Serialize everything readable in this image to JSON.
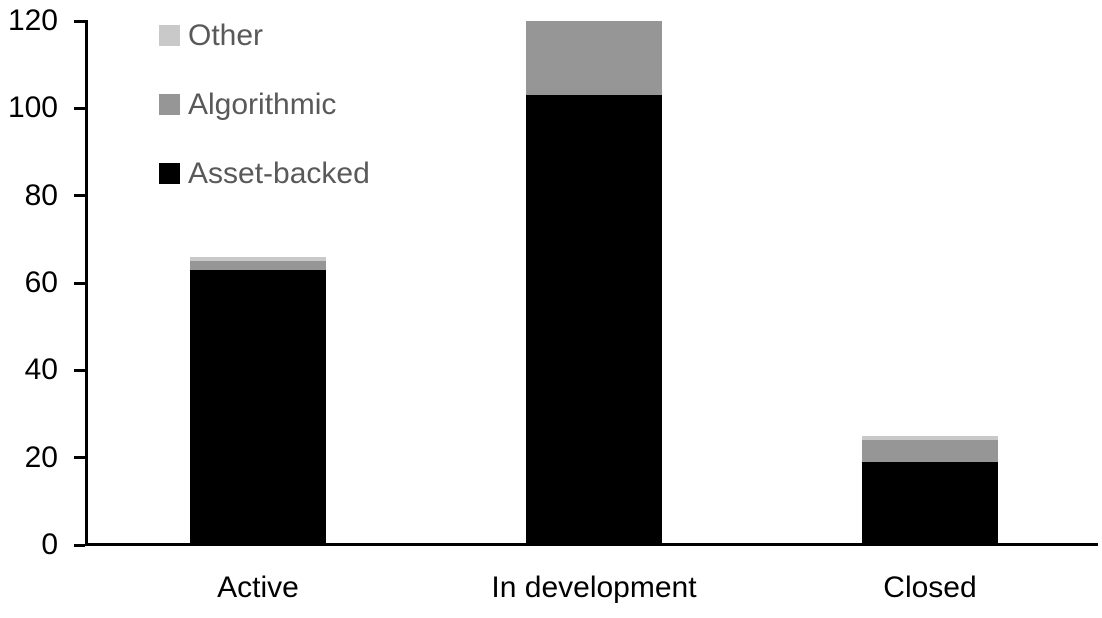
{
  "chart_data": {
    "type": "bar",
    "stacked": true,
    "categories": [
      "Active",
      "In development",
      "Closed"
    ],
    "series": [
      {
        "name": "Asset-backed",
        "color": "#000000",
        "values": [
          63,
          103,
          19
        ]
      },
      {
        "name": "Algorithmic",
        "color": "#969696",
        "values": [
          2,
          17,
          5
        ]
      },
      {
        "name": "Other",
        "color": "#c9c9c9",
        "values": [
          1,
          0,
          1
        ]
      }
    ],
    "category_totals": [
      66,
      120,
      25
    ],
    "ylim": [
      0,
      120
    ],
    "yticks": [
      0,
      20,
      40,
      60,
      80,
      100,
      120
    ],
    "grid": false,
    "legend_position": "top-left",
    "axis_color": "#000000",
    "tick_label_color": "#000000",
    "legend_text_color": "#595959"
  },
  "legend": {
    "items": [
      {
        "label": "Other",
        "color": "#c9c9c9"
      },
      {
        "label": "Algorithmic",
        "color": "#969696"
      },
      {
        "label": "Asset-backed",
        "color": "#000000"
      }
    ]
  }
}
